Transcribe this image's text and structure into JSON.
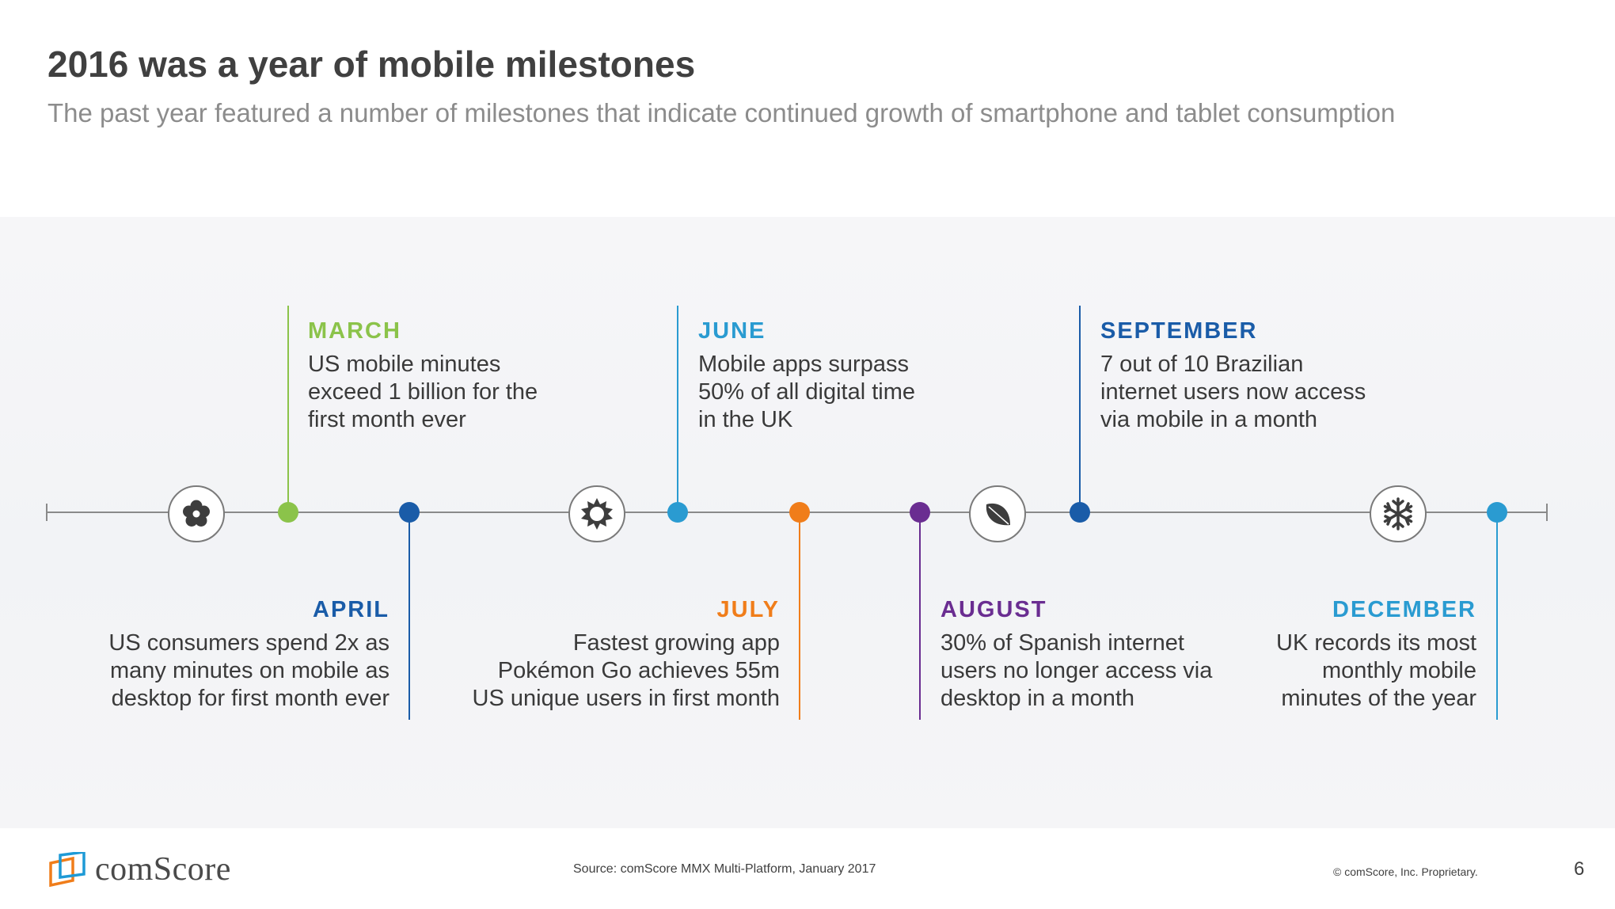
{
  "header": {
    "title": "2016 was a year of mobile milestones",
    "subtitle": "The past year featured a number of milestones that indicate continued growth of smartphone and tablet consumption"
  },
  "colors": {
    "green": "#8bc34a",
    "dark_blue": "#1a5ca8",
    "light_blue": "#2a9bd1",
    "orange": "#f07d1a",
    "purple": "#6a2d91",
    "axis": "#8a8a8a"
  },
  "seasons": [
    {
      "icon": "flower-icon"
    },
    {
      "icon": "sun-icon"
    },
    {
      "icon": "leaf-icon"
    },
    {
      "icon": "snowflake-icon"
    }
  ],
  "milestones": {
    "march": {
      "label": "MARCH",
      "text": "US mobile minutes\nexceed 1 billion for the\nfirst month ever"
    },
    "april": {
      "label": "APRIL",
      "text": "US consumers spend 2x as\nmany minutes on mobile as\ndesktop for first month ever"
    },
    "june": {
      "label": "JUNE",
      "text": "Mobile apps surpass\n50% of all digital time\nin the UK"
    },
    "july": {
      "label": "JULY",
      "text": "Fastest growing app\nPokémon Go achieves 55m\nUS unique users in first month"
    },
    "august": {
      "label": "AUGUST",
      "text": "30% of Spanish internet\nusers no longer access via\ndesktop in a month"
    },
    "september": {
      "label": "SEPTEMBER",
      "text": "7 out of 10 Brazilian\ninternet users now access\nvia mobile in a month"
    },
    "december": {
      "label": "DECEMBER",
      "text": "UK records its most\nmonthly mobile\nminutes of the year"
    }
  },
  "footer": {
    "brand": "comScore",
    "source": "Source: comScore MMX Multi-Platform, January 2017",
    "copyright": "© comScore, Inc. Proprietary.",
    "page_number": "6"
  }
}
